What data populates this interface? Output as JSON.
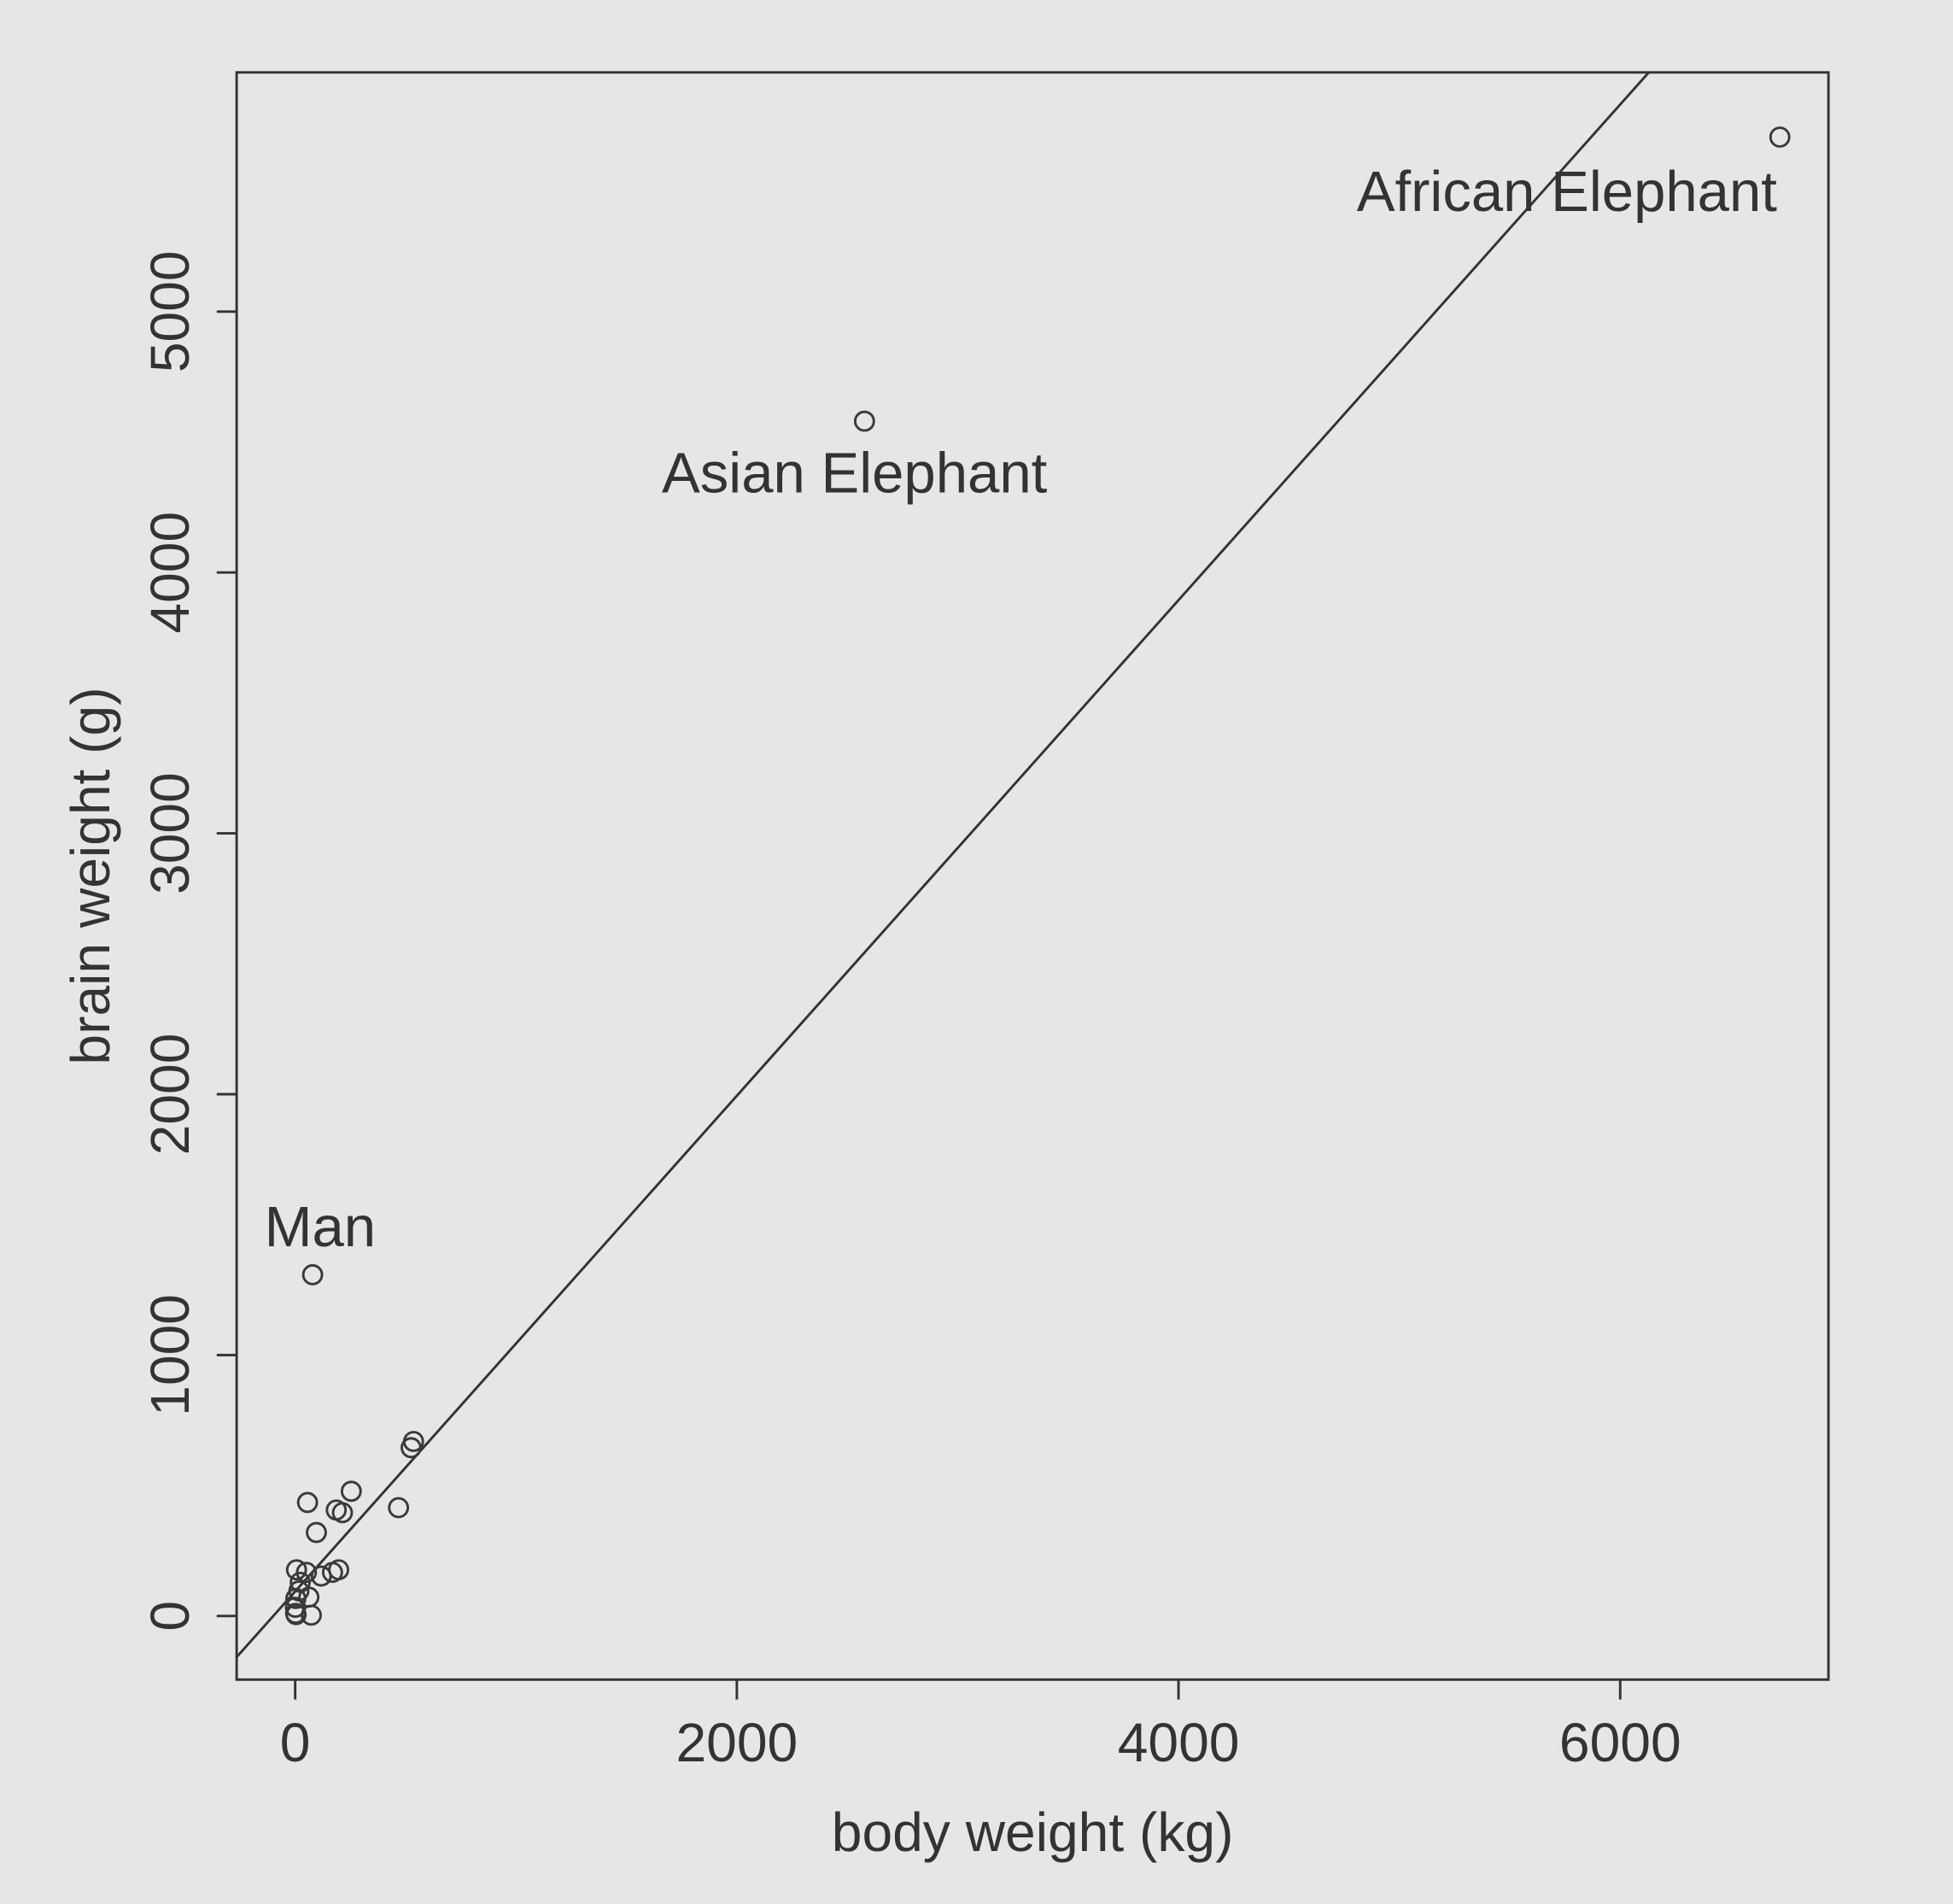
{
  "chart_data": {
    "type": "scatter",
    "x_label": "body weight (kg)",
    "y_label": "brain weight (g)",
    "xlim": [
      -265,
      6943
    ],
    "ylim": [
      -244,
      5917
    ],
    "xticks": [
      0,
      2000,
      4000,
      6000
    ],
    "yticks": [
      0,
      1000,
      2000,
      3000,
      4000,
      5000
    ],
    "fit": {
      "intercept": 94,
      "slope": 0.95,
      "color": "#333333"
    },
    "series": [
      {
        "color": "#3a3a3a",
        "x": [
          6723,
          2578,
          79,
          536,
          525,
          468,
          254,
          56,
          186,
          214,
          96,
          169,
          197,
          6,
          51,
          118,
          17,
          62,
          73,
          1,
          2,
          3,
          4,
          23
        ],
        "values": [
          5669,
          4580,
          1308,
          669,
          645,
          415,
          478,
          435,
          406,
          396,
          320,
          167,
          177,
          177,
          167,
          153,
          96,
          72,
          3,
          33,
          10,
          67,
          5,
          129
        ],
        "labels": [
          "African Elephant",
          "Asian Elephant",
          "Man",
          null,
          null,
          null,
          null,
          null,
          null,
          null,
          null,
          null,
          null,
          null,
          null,
          null,
          null,
          null,
          null,
          null,
          null,
          null,
          null,
          null
        ]
      }
    ]
  }
}
